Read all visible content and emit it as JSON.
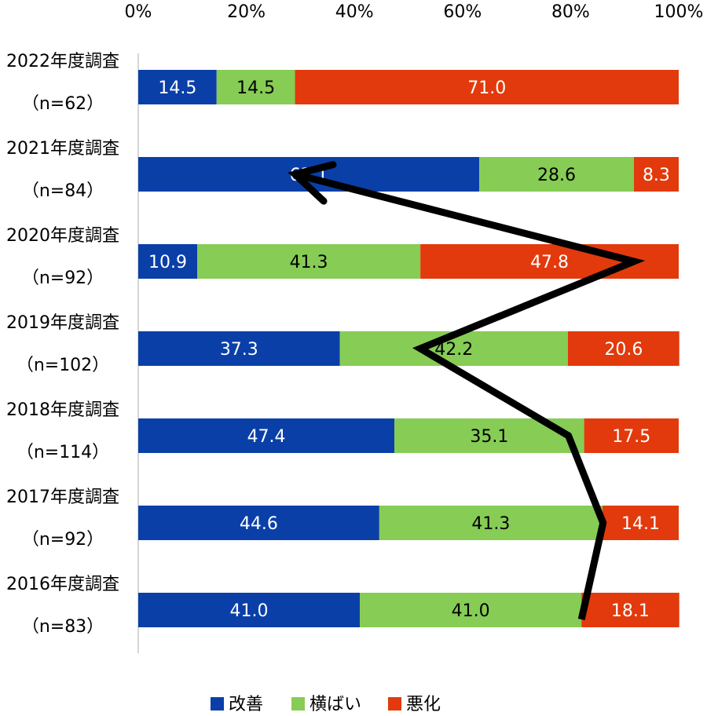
{
  "chart_data": {
    "type": "bar",
    "orientation": "horizontal",
    "stacked": "percent",
    "categories": [
      {
        "label": "2022年度調査",
        "n": "（n=62）"
      },
      {
        "label": "2021年度調査",
        "n": "（n=84）"
      },
      {
        "label": "2020年度調査",
        "n": "（n=92）"
      },
      {
        "label": "2019年度調査",
        "n": "（n=102）"
      },
      {
        "label": "2018年度調査",
        "n": "（n=114）"
      },
      {
        "label": "2017年度調査",
        "n": "（n=92）"
      },
      {
        "label": "2016年度調査",
        "n": "（n=83）"
      }
    ],
    "series": [
      {
        "name": "改善",
        "color": "#0a3fa8",
        "label_color": "#ffffff",
        "values": [
          14.5,
          63.1,
          10.9,
          37.3,
          47.4,
          44.6,
          41.0
        ],
        "labels": [
          "14.5",
          "63.1",
          "10.9",
          "37.3",
          "47.4",
          "44.6",
          "41.0"
        ]
      },
      {
        "name": "横ばい",
        "color": "#86cc55",
        "label_color": "#000000",
        "values": [
          14.5,
          28.6,
          41.3,
          42.2,
          35.1,
          41.3,
          41.0
        ],
        "labels": [
          "14.5",
          "28.6",
          "41.3",
          "42.2",
          "35.1",
          "41.3",
          "41.0"
        ]
      },
      {
        "name": "悪化",
        "color": "#e23a0c",
        "label_color": "#ffffff",
        "values": [
          71.0,
          8.3,
          47.8,
          20.6,
          17.5,
          14.1,
          18.1
        ],
        "labels": [
          "71.0",
          "8.3",
          "47.8",
          "20.6",
          "17.5",
          "14.1",
          "18.1"
        ]
      }
    ],
    "x_ticks": [
      "0%",
      "20%",
      "40%",
      "60%",
      "80%",
      "100%"
    ],
    "xlim": [
      0,
      100
    ],
    "x_axis_position": "top",
    "legend_position": "bottom",
    "grid": false,
    "annotation": {
      "type": "arrow",
      "color": "#000000",
      "path_percent_from_oldest": [
        82,
        86,
        79.6,
        52.2,
        91.7,
        29
      ]
    }
  }
}
